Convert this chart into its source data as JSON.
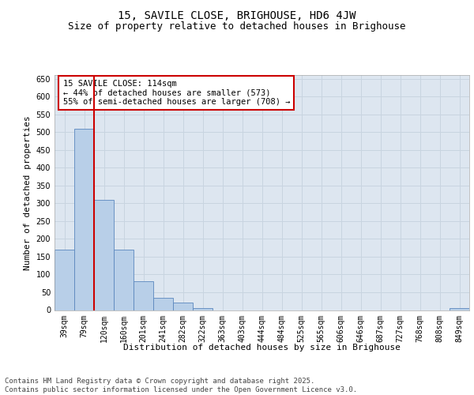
{
  "title": "15, SAVILE CLOSE, BRIGHOUSE, HD6 4JW",
  "subtitle": "Size of property relative to detached houses in Brighouse",
  "xlabel": "Distribution of detached houses by size in Brighouse",
  "ylabel": "Number of detached properties",
  "categories": [
    "39sqm",
    "79sqm",
    "120sqm",
    "160sqm",
    "201sqm",
    "241sqm",
    "282sqm",
    "322sqm",
    "363sqm",
    "403sqm",
    "444sqm",
    "484sqm",
    "525sqm",
    "565sqm",
    "606sqm",
    "646sqm",
    "687sqm",
    "727sqm",
    "768sqm",
    "808sqm",
    "849sqm"
  ],
  "values": [
    170,
    510,
    310,
    170,
    80,
    35,
    22,
    5,
    0,
    0,
    0,
    0,
    0,
    0,
    0,
    0,
    0,
    0,
    0,
    0,
    5
  ],
  "bar_color": "#b8cfe8",
  "bar_edge_color": "#5a87be",
  "vline_index": 1.5,
  "vline_color": "#cc0000",
  "annotation_text": "15 SAVILE CLOSE: 114sqm\n← 44% of detached houses are smaller (573)\n55% of semi-detached houses are larger (708) →",
  "annotation_box_color": "#ffffff",
  "annotation_box_edge": "#cc0000",
  "ylim": [
    0,
    660
  ],
  "grid_color": "#c8d4e0",
  "bg_color": "#dde6f0",
  "footer": "Contains HM Land Registry data © Crown copyright and database right 2025.\nContains public sector information licensed under the Open Government Licence v3.0.",
  "title_fontsize": 10,
  "subtitle_fontsize": 9,
  "axis_label_fontsize": 8,
  "tick_fontsize": 7,
  "annotation_fontsize": 7.5,
  "footer_fontsize": 6.5
}
